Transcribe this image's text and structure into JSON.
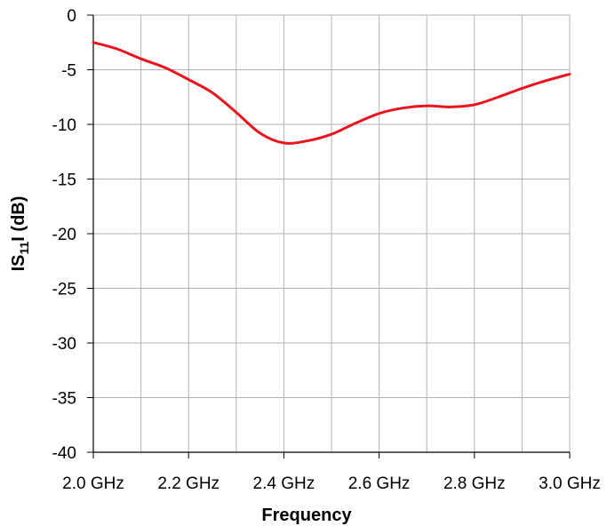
{
  "chart_data": {
    "type": "line",
    "title": "",
    "xlabel": "Frequency",
    "ylabel": {
      "prefix": "IS",
      "subscript": "11",
      "suffix": "I (dB)"
    },
    "xlim": [
      2.0,
      3.0
    ],
    "ylim": [
      -40,
      0
    ],
    "grid": true,
    "legend": "none",
    "x_ticks": [
      {
        "value": 2.0,
        "label": "2.0 GHz"
      },
      {
        "value": 2.2,
        "label": "2.2 GHz"
      },
      {
        "value": 2.4,
        "label": "2.4 GHz"
      },
      {
        "value": 2.6,
        "label": "2.6 GHz"
      },
      {
        "value": 2.8,
        "label": "2.8 GHz"
      },
      {
        "value": 3.0,
        "label": "3.0 GHz"
      }
    ],
    "y_ticks": [
      {
        "value": 0,
        "label": "0"
      },
      {
        "value": -5,
        "label": "-5"
      },
      {
        "value": -10,
        "label": "-10"
      },
      {
        "value": -15,
        "label": "-15"
      },
      {
        "value": -20,
        "label": "-20"
      },
      {
        "value": -25,
        "label": "-25"
      },
      {
        "value": -30,
        "label": "-30"
      },
      {
        "value": -35,
        "label": "-35"
      },
      {
        "value": -40,
        "label": "-40"
      }
    ],
    "x_minor_grid_step": 0.1,
    "series": [
      {
        "color": "#e8141e",
        "x": [
          2.0,
          2.05,
          2.1,
          2.15,
          2.2,
          2.25,
          2.3,
          2.35,
          2.4,
          2.45,
          2.5,
          2.55,
          2.6,
          2.65,
          2.7,
          2.75,
          2.8,
          2.85,
          2.9,
          2.95,
          3.0
        ],
        "y": [
          -2.5,
          -3.1,
          -4.0,
          -4.8,
          -5.9,
          -7.1,
          -8.9,
          -10.8,
          -11.7,
          -11.5,
          -10.9,
          -9.9,
          -9.0,
          -8.5,
          -8.3,
          -8.4,
          -8.2,
          -7.5,
          -6.7,
          -6.0,
          -5.4
        ]
      }
    ]
  }
}
